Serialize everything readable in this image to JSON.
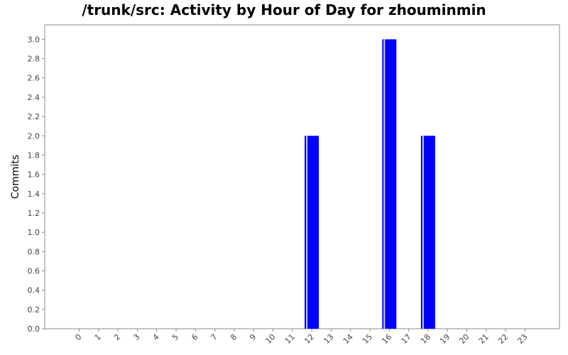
{
  "chart_data": {
    "type": "bar",
    "title": "/trunk/src: Activity by Hour of Day for zhouminmin",
    "xlabel": "",
    "ylabel": "Commits",
    "categories": [
      "0",
      "1",
      "2",
      "3",
      "4",
      "5",
      "6",
      "7",
      "8",
      "9",
      "10",
      "11",
      "12",
      "13",
      "14",
      "15",
      "16",
      "17",
      "18",
      "19",
      "20",
      "21",
      "22",
      "23"
    ],
    "series": [
      {
        "values": [
          0,
          0,
          0,
          0,
          0,
          0,
          0,
          0,
          0,
          0,
          0,
          0,
          2,
          0,
          0,
          0,
          3,
          0,
          2,
          0,
          0,
          0,
          0,
          0
        ]
      }
    ],
    "ylim": [
      0,
      3.15
    ],
    "yticks": [
      "0.0",
      "0.2",
      "0.4",
      "0.6",
      "0.8",
      "1.0",
      "1.2",
      "1.4",
      "1.6",
      "1.8",
      "2.0",
      "2.2",
      "2.4",
      "2.6",
      "2.8",
      "3.0"
    ],
    "grid": false,
    "legend": "none",
    "bar_color": "#0000ff",
    "bar_highlight_color": "#ccccff"
  }
}
